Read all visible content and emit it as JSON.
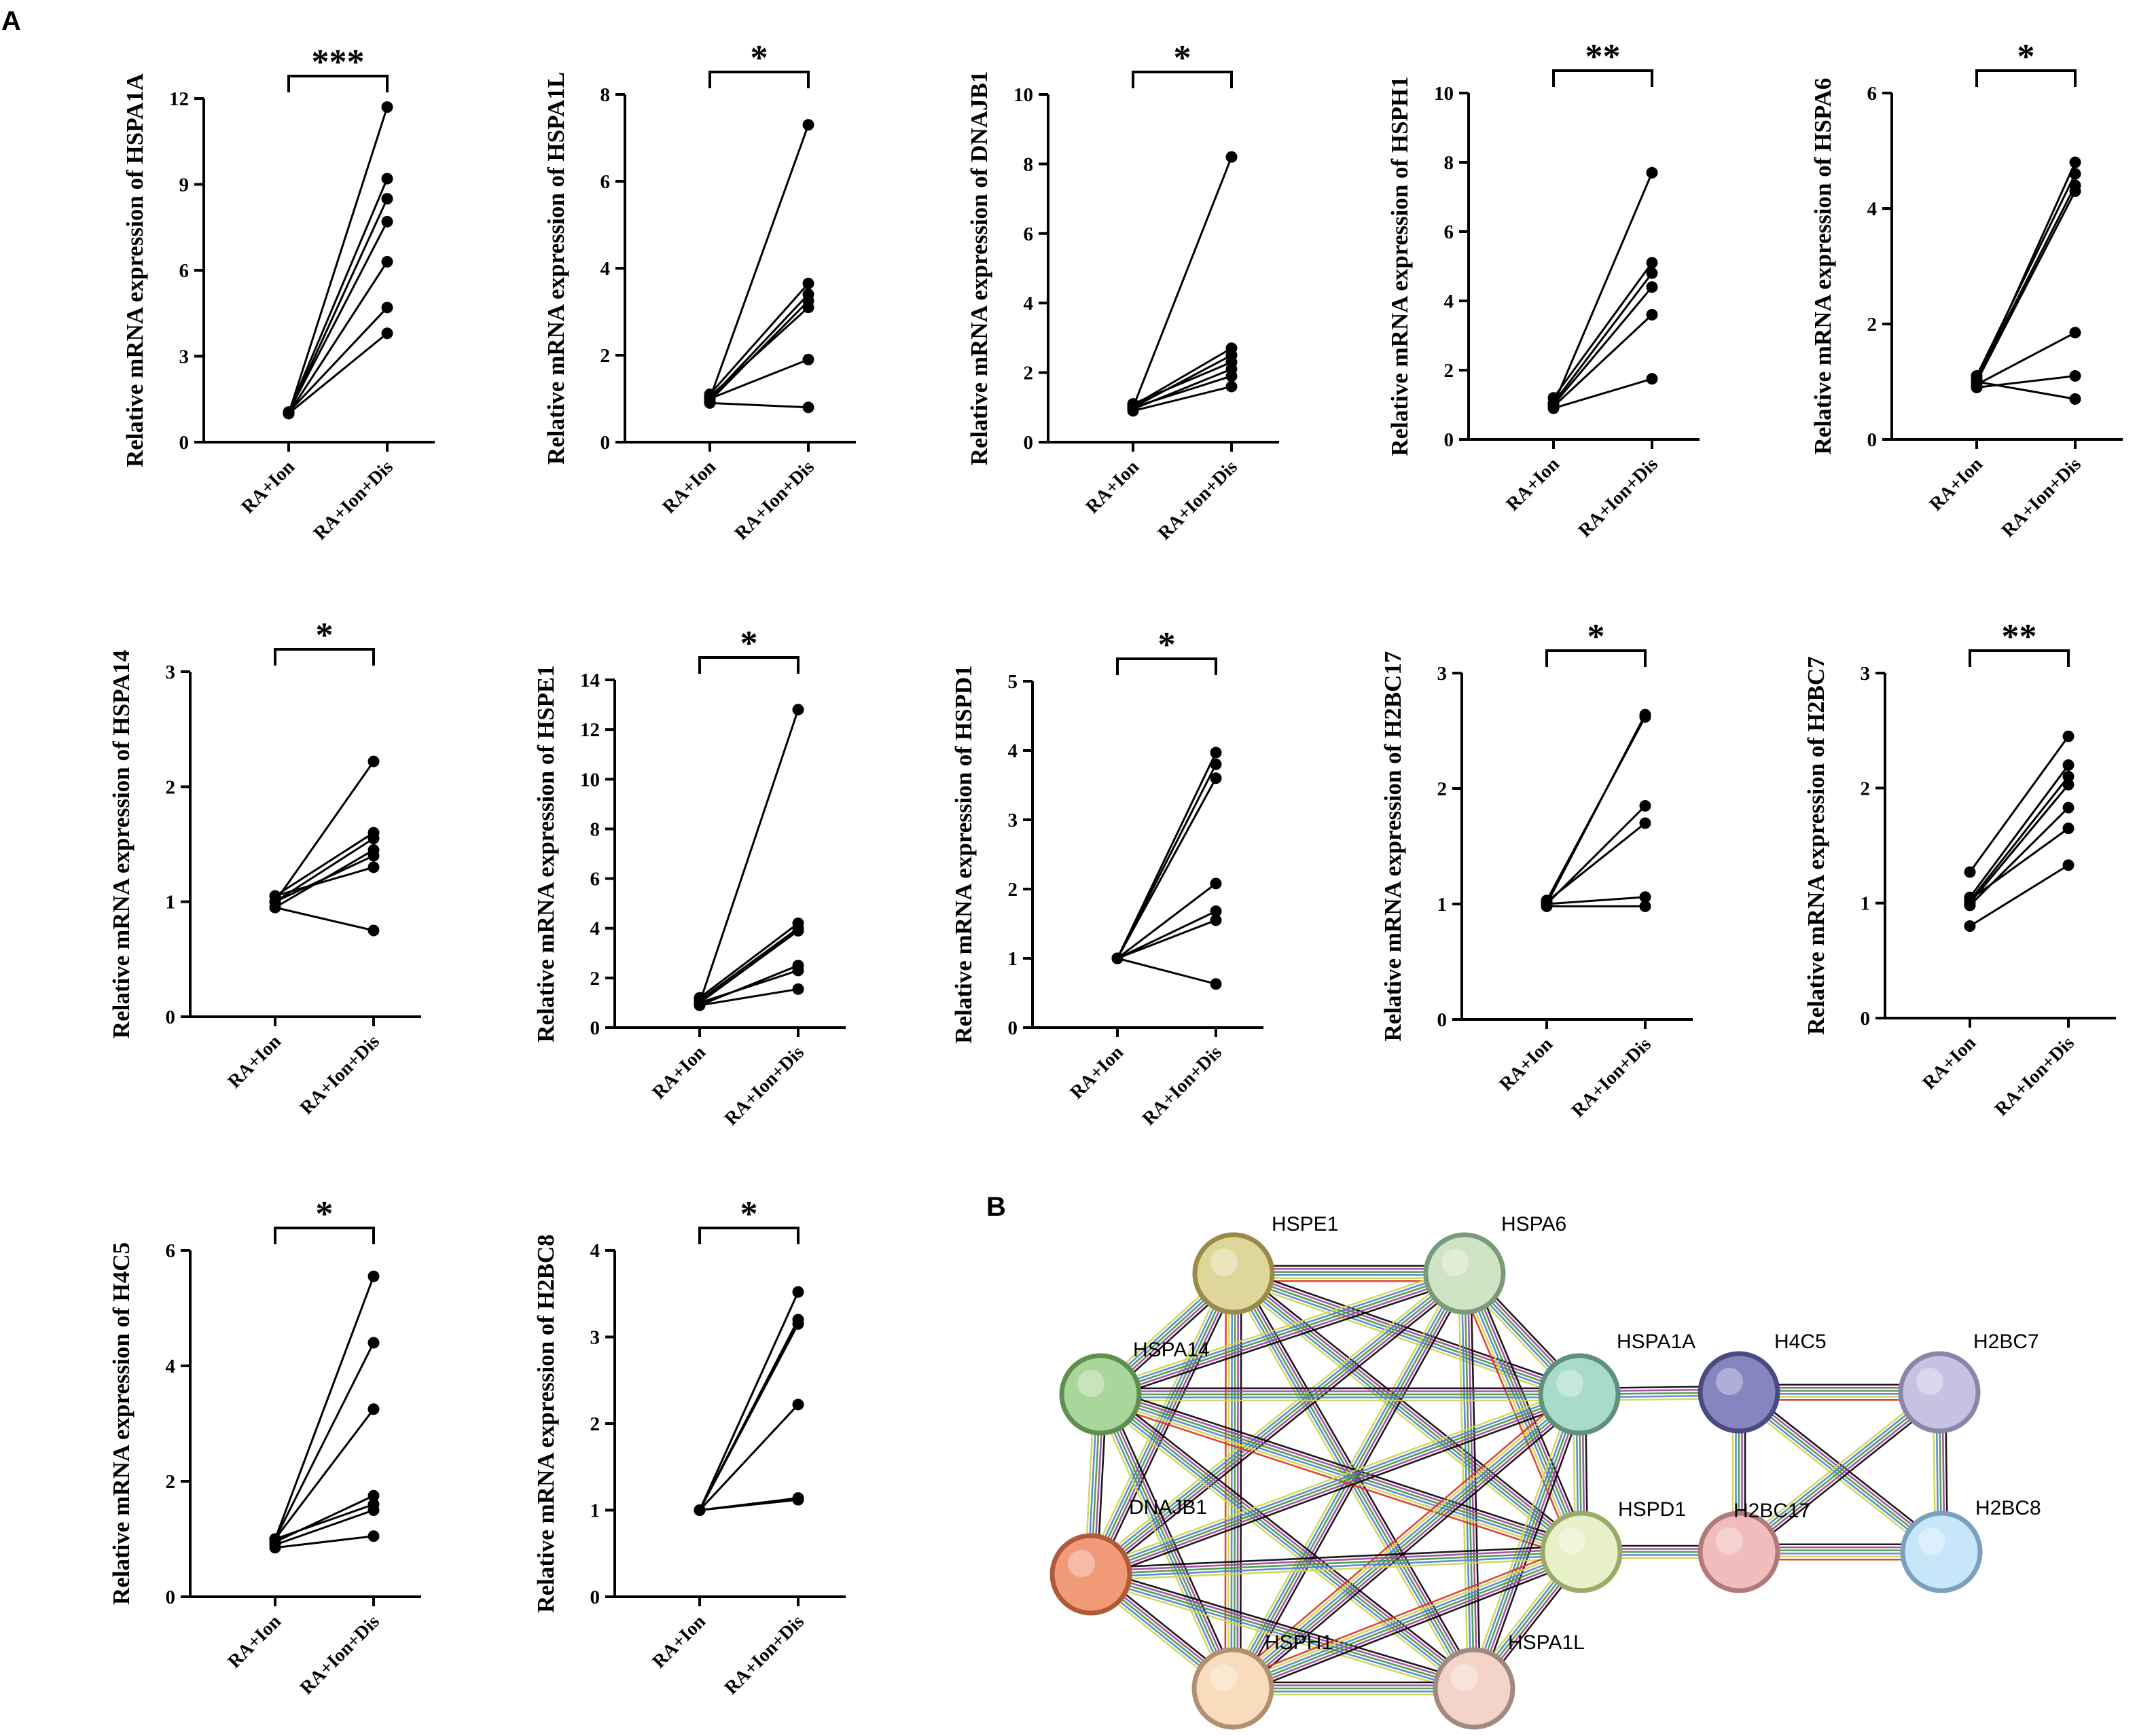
{
  "panel_labels": {
    "a": "A",
    "b": "B"
  },
  "chart_data": [
    {
      "type": "line",
      "gene": "HSPA1A",
      "ylabel": "Relative mRNA expression of HSPA1A",
      "categories": [
        "RA+Ion",
        "RA+Ion+Dis"
      ],
      "ylim": [
        0,
        12
      ],
      "yticks": [
        0,
        3,
        6,
        9,
        12
      ],
      "significance": "***",
      "series": [
        {
          "values": [
            1.0,
            11.7
          ]
        },
        {
          "values": [
            1.05,
            9.2
          ]
        },
        {
          "values": [
            1.0,
            8.5
          ]
        },
        {
          "values": [
            1.05,
            7.7
          ]
        },
        {
          "values": [
            1.0,
            6.3
          ]
        },
        {
          "values": [
            1.05,
            4.7
          ]
        },
        {
          "values": [
            1.0,
            3.8
          ]
        }
      ]
    },
    {
      "type": "line",
      "gene": "HSPA1L",
      "ylabel": "Relative mRNA expression of HSPA1L",
      "categories": [
        "RA+Ion",
        "RA+Ion+Dis"
      ],
      "ylim": [
        0,
        8
      ],
      "yticks": [
        0,
        2,
        4,
        6,
        8
      ],
      "significance": "*",
      "series": [
        {
          "values": [
            1.0,
            7.3
          ]
        },
        {
          "values": [
            1.1,
            3.65
          ]
        },
        {
          "values": [
            1.0,
            3.4
          ]
        },
        {
          "values": [
            0.95,
            3.25
          ]
        },
        {
          "values": [
            1.05,
            3.1
          ]
        },
        {
          "values": [
            1.0,
            1.9
          ]
        },
        {
          "values": [
            0.9,
            0.8
          ]
        }
      ]
    },
    {
      "type": "line",
      "gene": "DNAJB1",
      "ylabel": "Relative mRNA expression of DNAJB1",
      "categories": [
        "RA+Ion",
        "RA+Ion+Dis"
      ],
      "ylim": [
        0,
        10
      ],
      "yticks": [
        0,
        2,
        4,
        6,
        8,
        10
      ],
      "significance": "*",
      "series": [
        {
          "values": [
            1.0,
            8.2
          ]
        },
        {
          "values": [
            1.05,
            2.7
          ]
        },
        {
          "values": [
            1.0,
            2.5
          ]
        },
        {
          "values": [
            1.1,
            2.3
          ]
        },
        {
          "values": [
            0.95,
            2.1
          ]
        },
        {
          "values": [
            1.0,
            1.9
          ]
        },
        {
          "values": [
            0.9,
            1.6
          ]
        }
      ]
    },
    {
      "type": "line",
      "gene": "HSPH1",
      "ylabel": "Relative mRNA expression of HSPH1",
      "categories": [
        "RA+Ion",
        "RA+Ion+Dis"
      ],
      "ylim": [
        0,
        10
      ],
      "yticks": [
        0,
        2,
        4,
        6,
        8,
        10
      ],
      "significance": "**",
      "series": [
        {
          "values": [
            1.0,
            7.7
          ]
        },
        {
          "values": [
            1.2,
            5.1
          ]
        },
        {
          "values": [
            1.05,
            4.8
          ]
        },
        {
          "values": [
            1.0,
            4.4
          ]
        },
        {
          "values": [
            0.95,
            3.6
          ]
        },
        {
          "values": [
            0.9,
            1.75
          ]
        }
      ]
    },
    {
      "type": "line",
      "gene": "HSPA6",
      "ylabel": "Relative mRNA expression of HSPA6",
      "categories": [
        "RA+Ion",
        "RA+Ion+Dis"
      ],
      "ylim": [
        0,
        6
      ],
      "yticks": [
        0,
        2,
        4,
        6
      ],
      "significance": "*",
      "series": [
        {
          "values": [
            1.0,
            4.8
          ]
        },
        {
          "values": [
            1.1,
            4.6
          ]
        },
        {
          "values": [
            1.05,
            4.4
          ]
        },
        {
          "values": [
            1.0,
            4.3
          ]
        },
        {
          "values": [
            0.95,
            1.85
          ]
        },
        {
          "values": [
            0.9,
            1.1
          ]
        },
        {
          "values": [
            1.0,
            0.7
          ]
        }
      ]
    },
    {
      "type": "line",
      "gene": "HSPA14",
      "ylabel": "Relative mRNA expression of HSPA14",
      "categories": [
        "RA+Ion",
        "RA+Ion+Dis"
      ],
      "ylim": [
        0,
        3
      ],
      "yticks": [
        0,
        1,
        2,
        3
      ],
      "significance": "*",
      "series": [
        {
          "values": [
            1.0,
            2.22
          ]
        },
        {
          "values": [
            1.05,
            1.6
          ]
        },
        {
          "values": [
            1.0,
            1.55
          ]
        },
        {
          "values": [
            0.95,
            1.45
          ]
        },
        {
          "values": [
            1.0,
            1.4
          ]
        },
        {
          "values": [
            1.05,
            1.3
          ]
        },
        {
          "values": [
            0.95,
            0.75
          ]
        }
      ]
    },
    {
      "type": "line",
      "gene": "HSPE1",
      "ylabel": "Relative mRNA expression of HSPE1",
      "categories": [
        "RA+Ion",
        "RA+Ion+Dis"
      ],
      "ylim": [
        0,
        14
      ],
      "yticks": [
        0,
        2,
        4,
        6,
        8,
        10,
        12,
        14
      ],
      "significance": "*",
      "series": [
        {
          "values": [
            1.0,
            12.8
          ]
        },
        {
          "values": [
            1.2,
            4.2
          ]
        },
        {
          "values": [
            1.1,
            4.0
          ]
        },
        {
          "values": [
            1.0,
            3.9
          ]
        },
        {
          "values": [
            0.9,
            2.5
          ]
        },
        {
          "values": [
            1.0,
            2.3
          ]
        },
        {
          "values": [
            0.9,
            1.55
          ]
        }
      ]
    },
    {
      "type": "line",
      "gene": "HSPD1",
      "ylabel": "Relative mRNA expression of HSPD1",
      "categories": [
        "RA+Ion",
        "RA+Ion+Dis"
      ],
      "ylim": [
        0,
        5
      ],
      "yticks": [
        0,
        1,
        2,
        3,
        4,
        5
      ],
      "significance": "*",
      "series": [
        {
          "values": [
            1.0,
            3.97
          ]
        },
        {
          "values": [
            1.0,
            3.8
          ]
        },
        {
          "values": [
            1.0,
            3.6
          ]
        },
        {
          "values": [
            1.0,
            2.08
          ]
        },
        {
          "values": [
            1.0,
            1.68
          ]
        },
        {
          "values": [
            1.0,
            1.55
          ]
        },
        {
          "values": [
            1.0,
            0.63
          ]
        }
      ]
    },
    {
      "type": "line",
      "gene": "H2BC17",
      "ylabel": "Relative mRNA expression of H2BC17",
      "categories": [
        "RA+Ion",
        "RA+Ion+Dis"
      ],
      "ylim": [
        0,
        3
      ],
      "yticks": [
        0,
        1,
        2,
        3
      ],
      "significance": "*",
      "series": [
        {
          "values": [
            1.0,
            2.64
          ]
        },
        {
          "values": [
            1.03,
            2.62
          ]
        },
        {
          "values": [
            1.0,
            1.85
          ]
        },
        {
          "values": [
            1.02,
            1.7
          ]
        },
        {
          "values": [
            1.0,
            1.06
          ]
        },
        {
          "values": [
            0.98,
            0.98
          ]
        }
      ]
    },
    {
      "type": "line",
      "gene": "H2BC7",
      "ylabel": "Relative mRNA expression of H2BC7",
      "categories": [
        "RA+Ion",
        "RA+Ion+Dis"
      ],
      "ylim": [
        0,
        3
      ],
      "yticks": [
        0,
        1,
        2,
        3
      ],
      "significance": "**",
      "series": [
        {
          "values": [
            1.27,
            2.45
          ]
        },
        {
          "values": [
            1.05,
            2.2
          ]
        },
        {
          "values": [
            1.02,
            2.1
          ]
        },
        {
          "values": [
            1.0,
            2.03
          ]
        },
        {
          "values": [
            0.98,
            1.83
          ]
        },
        {
          "values": [
            1.03,
            1.65
          ]
        },
        {
          "values": [
            0.8,
            1.33
          ]
        }
      ]
    },
    {
      "type": "line",
      "gene": "H4C5",
      "ylabel": "Relative mRNA expression of H4C5",
      "categories": [
        "RA+Ion",
        "RA+Ion+Dis"
      ],
      "ylim": [
        0,
        6
      ],
      "yticks": [
        0,
        2,
        4,
        6
      ],
      "significance": "*",
      "series": [
        {
          "values": [
            1.0,
            5.55
          ]
        },
        {
          "values": [
            1.0,
            4.4
          ]
        },
        {
          "values": [
            1.0,
            3.25
          ]
        },
        {
          "values": [
            0.95,
            1.75
          ]
        },
        {
          "values": [
            1.0,
            1.6
          ]
        },
        {
          "values": [
            0.9,
            1.5
          ]
        },
        {
          "values": [
            0.85,
            1.05
          ]
        }
      ]
    },
    {
      "type": "line",
      "gene": "H2BC8",
      "ylabel": "Relative mRNA expression of H2BC8",
      "categories": [
        "RA+Ion",
        "RA+Ion+Dis"
      ],
      "ylim": [
        0,
        4
      ],
      "yticks": [
        0,
        1,
        2,
        3,
        4
      ],
      "significance": "*",
      "series": [
        {
          "values": [
            1.0,
            3.52
          ]
        },
        {
          "values": [
            1.0,
            3.2
          ]
        },
        {
          "values": [
            1.0,
            3.15
          ]
        },
        {
          "values": [
            1.0,
            2.22
          ]
        },
        {
          "values": [
            1.0,
            1.14
          ]
        },
        {
          "values": [
            1.0,
            1.12
          ]
        }
      ]
    }
  ],
  "network": {
    "nodes": [
      {
        "id": "HSPE1",
        "label": "HSPE1",
        "color": "#dfd79a",
        "border": "#9a8a4a"
      },
      {
        "id": "HSPA6",
        "label": "HSPA6",
        "color": "#cfe4c4",
        "border": "#7a9a7a"
      },
      {
        "id": "HSPA14",
        "label": "HSPA14",
        "color": "#a9d69a",
        "border": "#5f8f4f"
      },
      {
        "id": "HSPA1A",
        "label": "HSPA1A",
        "color": "#a8dcc8",
        "border": "#5f8f7f"
      },
      {
        "id": "H4C5",
        "label": "H4C5",
        "color": "#8585c0",
        "border": "#4a4a80"
      },
      {
        "id": "H2BC7",
        "label": "H2BC7",
        "color": "#c6c2e2",
        "border": "#8a86aa"
      },
      {
        "id": "DNAJB1",
        "label": "DNAJB1",
        "color": "#f09a78",
        "border": "#b05a3a"
      },
      {
        "id": "HSPD1",
        "label": "HSPD1",
        "color": "#e8f0c8",
        "border": "#9aaa6a"
      },
      {
        "id": "H2BC17",
        "label": "H2BC17",
        "color": "#f2bcbc",
        "border": "#b07a7a"
      },
      {
        "id": "H2BC8",
        "label": "H2BC8",
        "color": "#c8e6fa",
        "border": "#7aa0c0"
      },
      {
        "id": "HSPH1",
        "label": "HSPH1",
        "color": "#f8dcbc",
        "border": "#b09070"
      },
      {
        "id": "HSPA1L",
        "label": "HSPA1L",
        "color": "#f4d4c8",
        "border": "#a08a80"
      }
    ],
    "edge_colors": [
      "#000000",
      "#a040a0",
      "#3a9a3a",
      "#5a7ad0",
      "#c8d84a",
      "#e03020"
    ]
  }
}
